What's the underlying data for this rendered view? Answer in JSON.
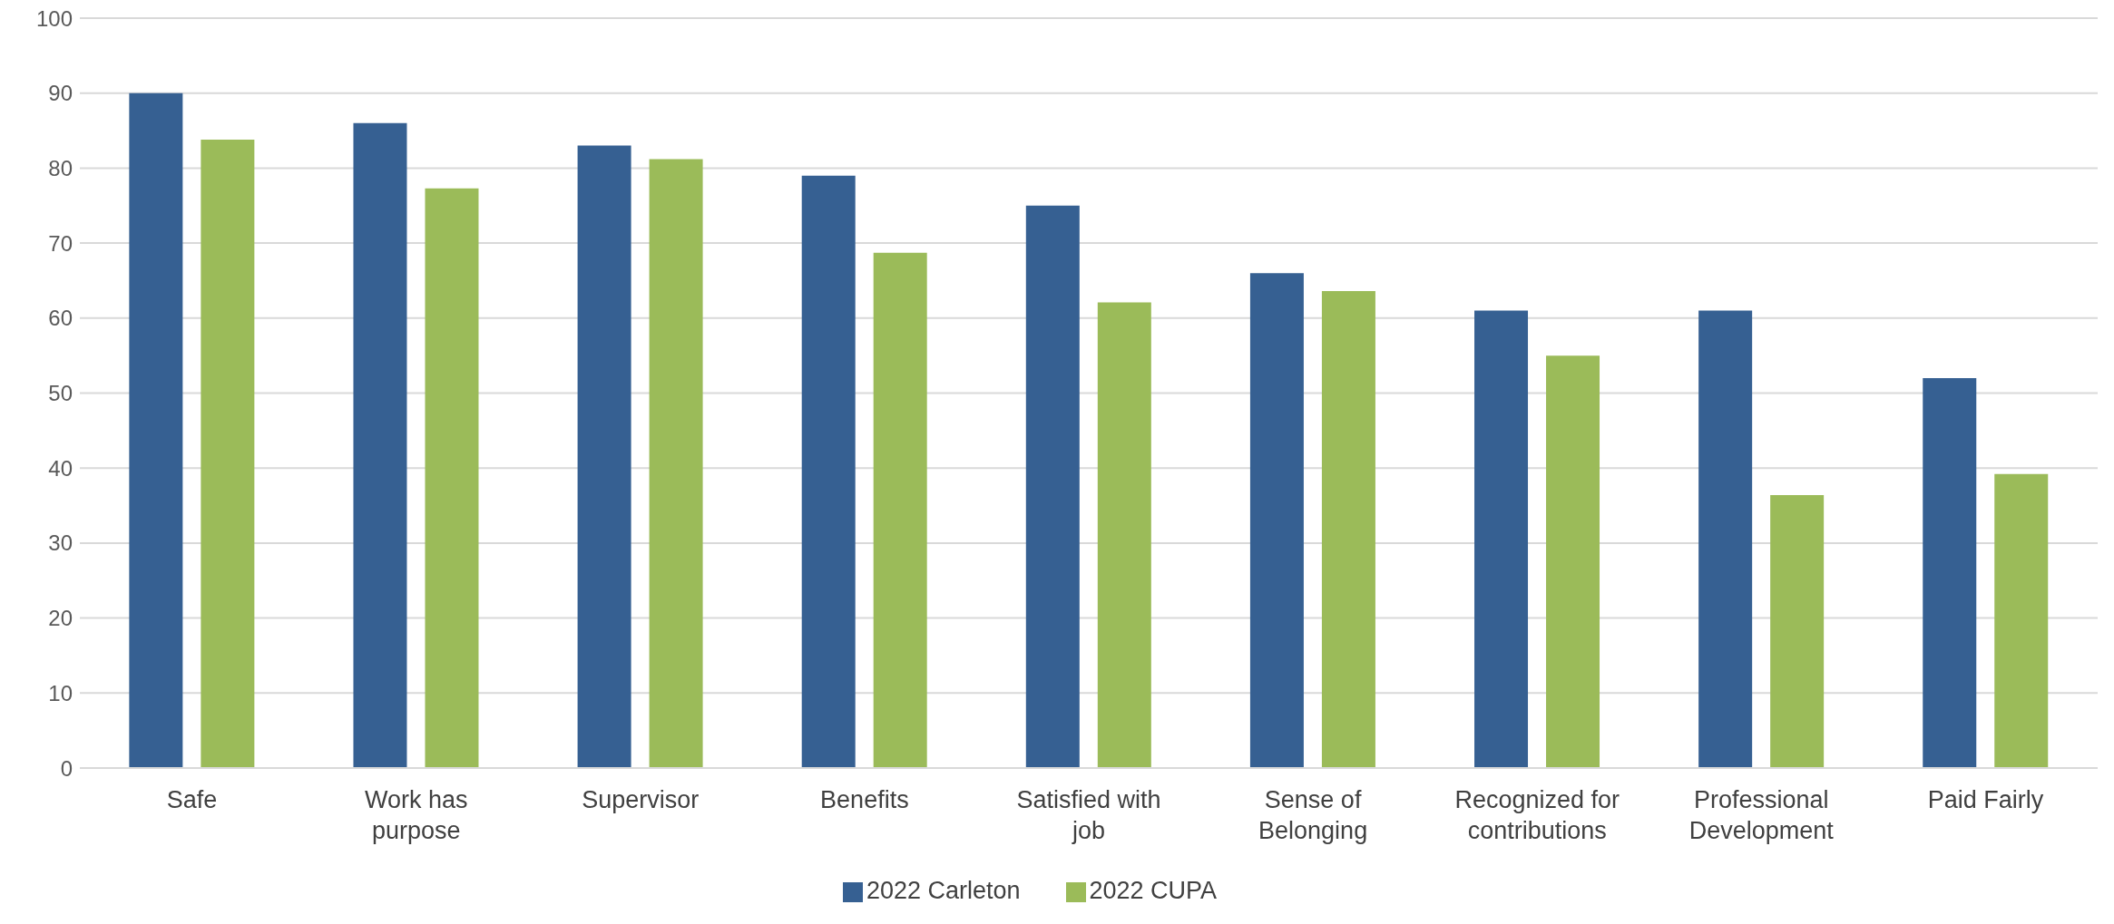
{
  "chart_data": {
    "type": "bar",
    "categories": [
      "Safe",
      "Work has purpose",
      "Supervisor",
      "Benefits",
      "Satisfied with job",
      "Sense of Belonging",
      "Recognized for contributions",
      "Professional Development",
      "Paid Fairly"
    ],
    "series": [
      {
        "name": "2022 Carleton",
        "color": "#366092",
        "values": [
          90,
          86,
          83,
          79,
          75,
          66,
          61,
          61,
          52
        ]
      },
      {
        "name": "2022 CUPA",
        "color": "#9bbb59",
        "values": [
          83.8,
          77.3,
          81.2,
          68.7,
          62.1,
          63.6,
          55.0,
          36.4,
          39.2
        ]
      }
    ],
    "ylim": [
      0,
      100
    ],
    "yticks": [
      0,
      10,
      20,
      30,
      40,
      50,
      60,
      70,
      80,
      90,
      100
    ],
    "grid": "y",
    "legend": "bottom"
  }
}
